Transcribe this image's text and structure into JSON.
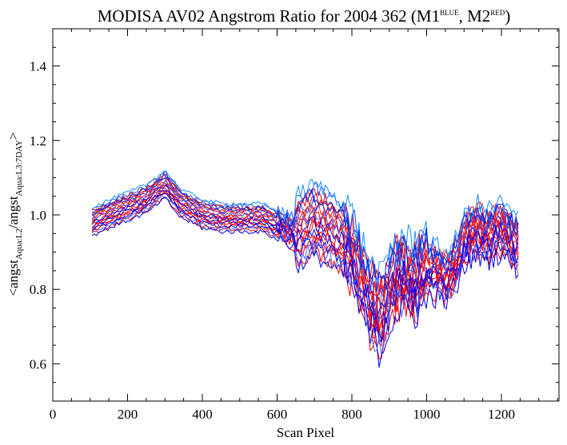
{
  "chart_data": {
    "type": "line",
    "title": {
      "main": "MODISA AV02 Angstrom Ratio for 2004 362 (M1",
      "sup1": "BLUE",
      "mid": ", M2",
      "sup2": "RED",
      "end": ")"
    },
    "xlabel": "Scan Pixel",
    "ylabel": {
      "part1": "<angst",
      "sub1": "Aqua:L2",
      "part2": "/angst",
      "sub2": "Aqua:L3:7DAY",
      "part3": ">"
    },
    "xlim": [
      0,
      1354
    ],
    "ylim": [
      0.5,
      1.5
    ],
    "xticks": [
      0,
      200,
      400,
      600,
      800,
      1000,
      1200
    ],
    "xtick_labels": [
      "0",
      "200",
      "400",
      "600",
      "800",
      "1000",
      "1200"
    ],
    "yticks": [
      0.6,
      0.8,
      1.0,
      1.2,
      1.4
    ],
    "ytick_labels": [
      "0.6",
      "0.8",
      "1.0",
      "1.2",
      "1.4"
    ],
    "grid": false,
    "x_range": [
      105,
      1250
    ],
    "mean_profile": {
      "x": [
        105,
        150,
        200,
        250,
        300,
        340,
        400,
        450,
        500,
        560,
        600,
        650,
        700,
        750,
        790,
        820,
        850,
        880,
        900,
        930,
        960,
        1000,
        1050,
        1080,
        1100,
        1130,
        1160,
        1200,
        1250
      ],
      "y": [
        0.98,
        1.0,
        1.02,
        1.04,
        1.08,
        1.03,
        1.0,
        0.99,
        0.99,
        0.99,
        0.97,
        0.95,
        0.98,
        0.95,
        0.92,
        0.84,
        0.76,
        0.72,
        0.8,
        0.84,
        0.82,
        0.85,
        0.83,
        0.86,
        0.92,
        0.96,
        0.94,
        0.96,
        0.91
      ]
    },
    "series": [
      {
        "color": "#ff0000",
        "offset": 0.01
      },
      {
        "color": "#ff0000",
        "offset": -0.02
      },
      {
        "color": "#ff0000",
        "offset": 0.03
      },
      {
        "color": "#ff0000",
        "offset": 0.0
      },
      {
        "color": "#ff0000",
        "offset": -0.01
      },
      {
        "color": "#ee1111",
        "offset": 0.02
      },
      {
        "color": "#ff0000",
        "offset": -0.03
      },
      {
        "color": "#ff1a1a",
        "offset": 0.015
      },
      {
        "color": "#ff0000",
        "offset": -0.005
      },
      {
        "color": "#ff0000",
        "offset": 0.025
      },
      {
        "color": "#ff0000",
        "offset": -0.015
      },
      {
        "color": "#ff0000",
        "offset": 0.005
      },
      {
        "color": "#1f3fff",
        "offset": 0.02
      },
      {
        "color": "#0000ff",
        "offset": -0.02
      },
      {
        "color": "#2255ff",
        "offset": 0.035
      },
      {
        "color": "#0000ee",
        "offset": -0.035
      },
      {
        "color": "#3a5cff",
        "offset": 0.01
      },
      {
        "color": "#0011ff",
        "offset": -0.01
      },
      {
        "color": "#1e90ff",
        "offset": 0.04
      },
      {
        "color": "#0000ff",
        "offset": 0.0
      },
      {
        "color": "#4466ff",
        "offset": -0.025
      },
      {
        "color": "#0022dd",
        "offset": 0.028
      }
    ]
  }
}
